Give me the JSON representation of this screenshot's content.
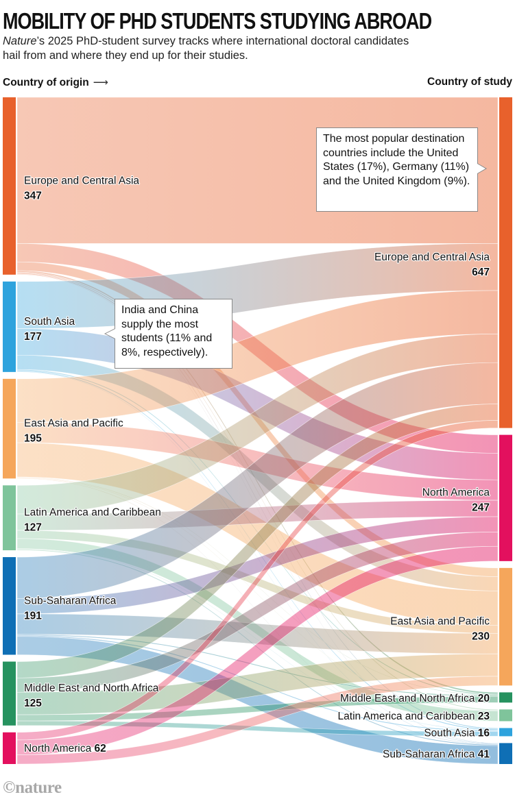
{
  "header": {
    "title": "MOBILITY OF PHD STUDENTS STUDYING ABROAD",
    "subtitle_italic": "Nature",
    "subtitle_rest": "’s 2025 PhD-student survey tracks where international doctoral candidates hail from and where they end up for their studies.",
    "left_axis_label": "Country of origin",
    "left_axis_arrow": "⟶",
    "right_axis_label": "Country of study"
  },
  "callouts": {
    "destinations": "The most popular destination countries include the United States (17%), Germany (11%) and the United Kingdom (9%).",
    "origins": "India and China supply the most students (11% and 8%, respectively)."
  },
  "footer": {
    "logo": "©nature"
  },
  "chart_data": {
    "type": "sankey",
    "title": "MOBILITY OF PHD STUDENTS STUDYING ABROAD",
    "left_label": "Country of origin",
    "right_label": "Country of study",
    "colors": {
      "Europe and Central Asia": "#e8612c",
      "South Asia": "#2ea3dd",
      "East Asia and Pacific": "#f5a65b",
      "Latin America and Caribbean": "#7fc49b",
      "Sub-Saharan Africa": "#0f6fb5",
      "Middle East and North Africa": "#26925f",
      "North America": "#e3105e"
    },
    "origins": [
      {
        "name": "Europe and Central Asia",
        "value": 347
      },
      {
        "name": "South Asia",
        "value": 177
      },
      {
        "name": "East Asia and Pacific",
        "value": 195
      },
      {
        "name": "Latin America and Caribbean",
        "value": 127
      },
      {
        "name": "Sub-Saharan Africa",
        "value": 191
      },
      {
        "name": "Middle East and North Africa",
        "value": 125
      },
      {
        "name": "North America",
        "value": 62
      }
    ],
    "destinations": [
      {
        "name": "Europe and Central Asia",
        "value": 647
      },
      {
        "name": "North America",
        "value": 247
      },
      {
        "name": "East Asia and Pacific",
        "value": 230
      },
      {
        "name": "Middle East and North Africa",
        "value": 20
      },
      {
        "name": "Latin America and Caribbean",
        "value": 23
      },
      {
        "name": "South Asia",
        "value": 16
      },
      {
        "name": "Sub-Saharan Africa",
        "value": 41
      }
    ],
    "flows_note": "approximate values estimated from band widths",
    "flows": [
      [
        286,
        36,
        17,
        3,
        2,
        2,
        1
      ],
      [
        92,
        52,
        28,
        2,
        0,
        2,
        1
      ],
      [
        85,
        40,
        67,
        1,
        1,
        0,
        1
      ],
      [
        56,
        32,
        16,
        0,
        20,
        1,
        2
      ],
      [
        81,
        30,
        40,
        2,
        0,
        2,
        36
      ],
      [
        32,
        28,
        44,
        12,
        0,
        9,
        0
      ],
      [
        15,
        29,
        18,
        0,
        0,
        0,
        0
      ]
    ]
  }
}
